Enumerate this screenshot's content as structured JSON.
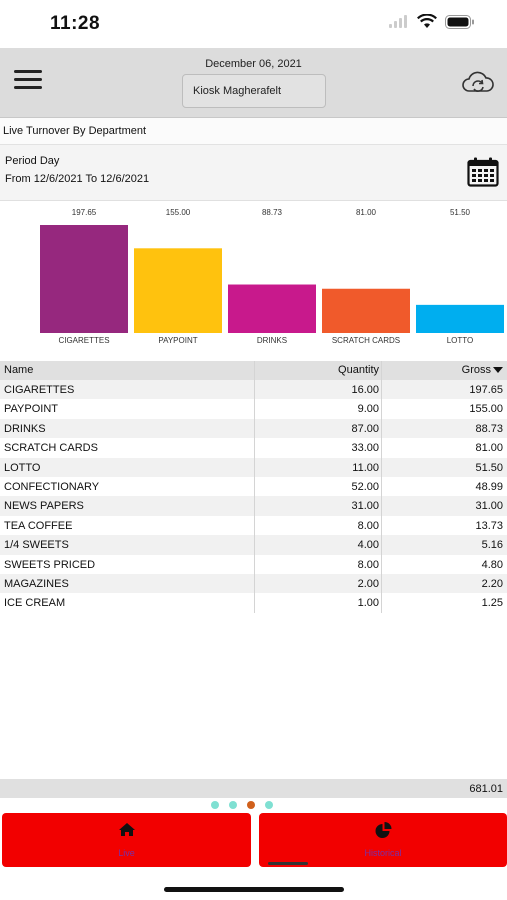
{
  "status_bar": {
    "time": "11:28"
  },
  "header": {
    "date": "December 06, 2021",
    "store": "Kiosk Magherafelt"
  },
  "report": {
    "title": "Live Turnover By Department",
    "period_label": "Period Day",
    "period_range": "From 12/6/2021 To 12/6/2021"
  },
  "chart_data": {
    "type": "bar",
    "currency": "£",
    "categories": [
      "CIGARETTES",
      "PAYPOINT",
      "DRINKS",
      "SCRATCH CARDS",
      "LOTTO"
    ],
    "values": [
      197.65,
      155.0,
      88.73,
      81.0,
      51.5
    ],
    "value_labels": [
      "197.65",
      "155.00",
      "88.73",
      "81.00",
      "51.50"
    ],
    "colors": [
      "#96287e",
      "#ffc20e",
      "#c8198c",
      "#f05a2b",
      "#00aeef"
    ],
    "ylim": [
      0,
      197.65
    ]
  },
  "table": {
    "headers": {
      "name": "Name",
      "quantity": "Quantity",
      "gross": "Gross"
    },
    "rows": [
      {
        "name": "CIGARETTES",
        "quantity": "16.00",
        "gross": "197.65"
      },
      {
        "name": "PAYPOINT",
        "quantity": "9.00",
        "gross": "155.00"
      },
      {
        "name": "DRINKS",
        "quantity": "87.00",
        "gross": "88.73"
      },
      {
        "name": "SCRATCH CARDS",
        "quantity": "33.00",
        "gross": "81.00"
      },
      {
        "name": "LOTTO",
        "quantity": "11.00",
        "gross": "51.50"
      },
      {
        "name": "CONFECTIONARY",
        "quantity": "52.00",
        "gross": "48.99"
      },
      {
        "name": "NEWS PAPERS",
        "quantity": "31.00",
        "gross": "31.00"
      },
      {
        "name": "TEA COFFEE",
        "quantity": "8.00",
        "gross": "13.73"
      },
      {
        "name": "1/4 SWEETS",
        "quantity": "4.00",
        "gross": "5.16"
      },
      {
        "name": "SWEETS PRICED",
        "quantity": "8.00",
        "gross": "4.80"
      },
      {
        "name": "MAGAZINES",
        "quantity": "2.00",
        "gross": "2.20"
      },
      {
        "name": "ICE CREAM",
        "quantity": "1.00",
        "gross": "1.25"
      }
    ],
    "total": "681.01"
  },
  "pager": {
    "count": 4,
    "active": 3
  },
  "tabs": [
    {
      "label": "Live",
      "icon": "home-icon"
    },
    {
      "label": "Historical",
      "icon": "pie-chart-icon"
    }
  ],
  "colors": {
    "tab_bg": "#f20000",
    "tab_text": "#7a2fa6",
    "header_bg": "#dcdcdc"
  }
}
